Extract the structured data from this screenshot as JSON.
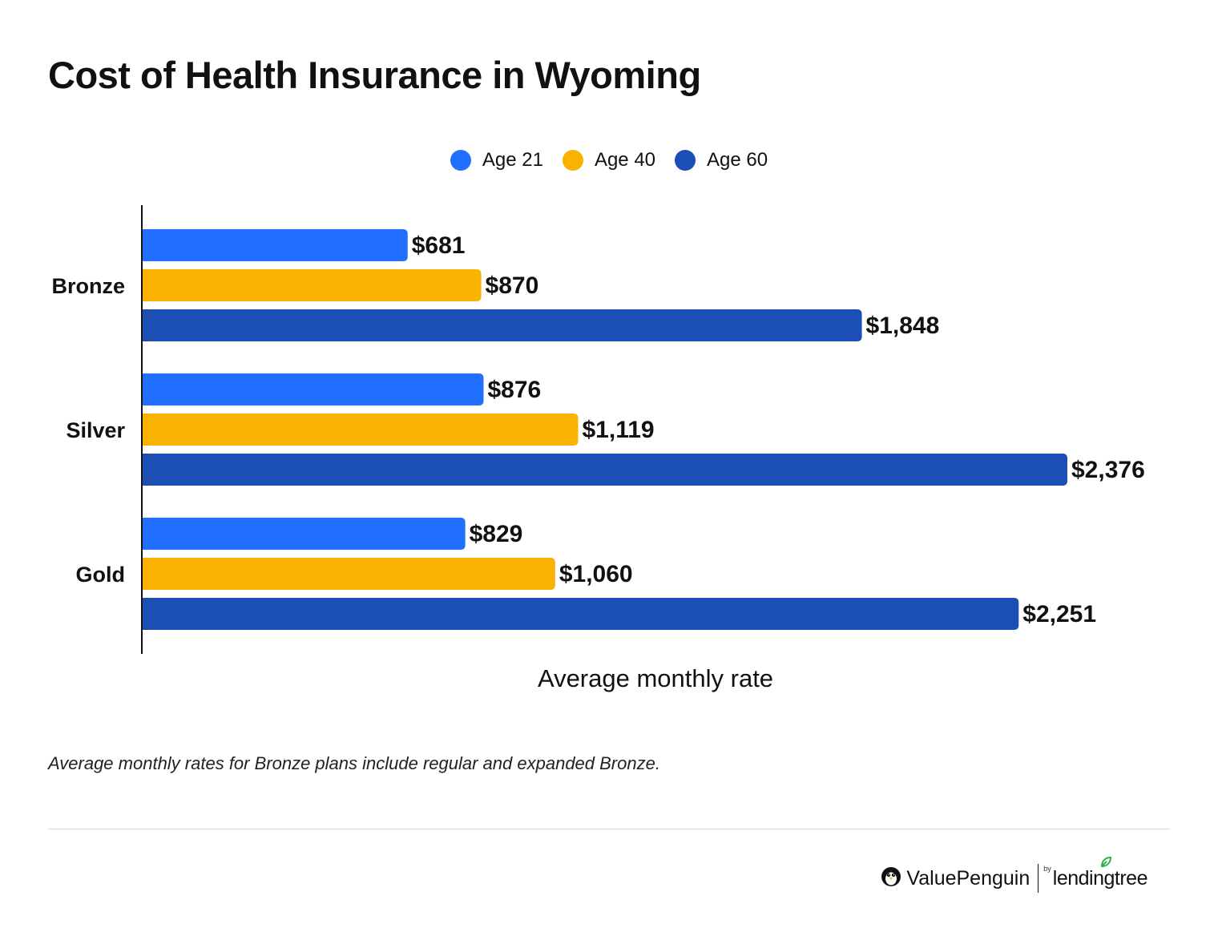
{
  "title": "Cost of Health Insurance in Wyoming",
  "legend": [
    {
      "label": "Age 21",
      "color": "#206FFF"
    },
    {
      "label": "Age 40",
      "color": "#F9B200"
    },
    {
      "label": "Age 60",
      "color": "#1B4FB5"
    }
  ],
  "chart_data": {
    "type": "bar",
    "orientation": "horizontal",
    "title": "Cost of Health Insurance in Wyoming",
    "xlabel": "Average monthly rate",
    "ylabel": "",
    "categories": [
      "Bronze",
      "Silver",
      "Gold"
    ],
    "series": [
      {
        "name": "Age 21",
        "color": "#206FFF",
        "values": [
          681,
          876,
          829
        ],
        "labels": [
          "$681",
          "$876",
          "$829"
        ]
      },
      {
        "name": "Age 40",
        "color": "#F9B200",
        "values": [
          870,
          1119,
          1060
        ],
        "labels": [
          "$870",
          "$1,119",
          "$1,060"
        ]
      },
      {
        "name": "Age 60",
        "color": "#1B4FB5",
        "values": [
          1848,
          2376,
          2251
        ],
        "labels": [
          "$1,848",
          "$2,376",
          "$2,251"
        ]
      }
    ],
    "xlim": [
      0,
      2376
    ],
    "grid": false,
    "legend_position": "top"
  },
  "footnote": "Average monthly rates for Bronze plans include regular and expanded Bronze.",
  "brand": {
    "icon": "penguin-icon",
    "name": "ValuePenguin",
    "by": "by",
    "partner": "lendingtree",
    "partner_icon": "leaf-icon"
  }
}
